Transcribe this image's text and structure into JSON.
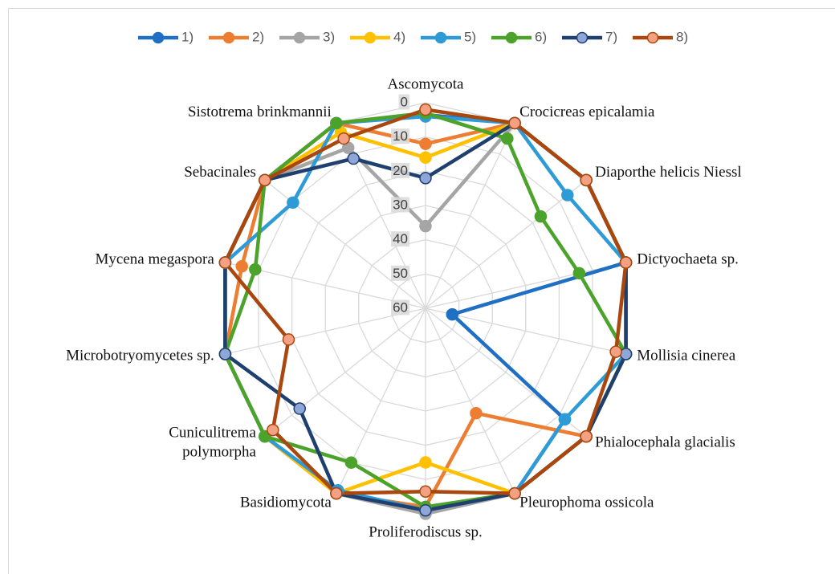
{
  "chart_data": {
    "type": "radar",
    "categories": [
      "Ascomycota",
      "Crocicreas epicalamia",
      "Diaporthe helicis Niessl",
      "Dictyochaeta sp.",
      "Mollisia cinerea",
      "Phialocephala glacialis",
      "Pleurophoma ossicola",
      "Proliferodiscus sp.",
      "Basidiomycota",
      "Cuniculitrema polymorpha",
      "Microbotryomycetes sp.",
      "Mycena megaspora",
      "Sebacinales",
      "Sistotrema brinkmannii"
    ],
    "series": [
      {
        "name": "1)",
        "color": "#1f6fc5",
        "marker_color": "#1f6fc5",
        "values": [
          3.5,
          0,
          0,
          0,
          52,
          8,
          0,
          1,
          0,
          0,
          0,
          0,
          0,
          0
        ]
      },
      {
        "name": "2)",
        "color": "#ed7d31",
        "marker_color": "#ed7d31",
        "values": [
          12,
          0,
          0,
          0,
          0,
          0,
          26,
          2,
          0,
          0,
          0,
          5,
          0,
          0
        ]
      },
      {
        "name": "3)",
        "color": "#a5a5a5",
        "marker_color": "#a5a5a5",
        "values": [
          36,
          0,
          0,
          0,
          0,
          0,
          0,
          0,
          0,
          0,
          0,
          0,
          0,
          8
        ]
      },
      {
        "name": "4)",
        "color": "#ffc000",
        "marker_color": "#ffc000",
        "values": [
          16,
          0,
          0,
          0,
          0,
          0,
          0,
          15,
          0,
          0,
          0,
          0,
          0,
          3
        ]
      },
      {
        "name": "5)",
        "color": "#2e9bd6",
        "marker_color": "#2e9bd6",
        "values": [
          4,
          0,
          7,
          0,
          0,
          8,
          0,
          1,
          1,
          0,
          0,
          0,
          10.5,
          0
        ]
      },
      {
        "name": "6)",
        "color": "#4ca32c",
        "marker_color": "#4ca32c",
        "values": [
          3,
          5,
          17,
          14,
          0,
          0,
          0,
          2,
          10,
          0,
          0,
          9,
          0,
          0
        ]
      },
      {
        "name": "7)",
        "color": "#1f3f6e",
        "marker_color": "#8fa6d8",
        "values": [
          22,
          0,
          0,
          0,
          0,
          0,
          0,
          1,
          0,
          13,
          0,
          0,
          0,
          11.5
        ]
      },
      {
        "name": "8)",
        "color": "#a9470e",
        "marker_color": "#f4a183",
        "values": [
          2,
          0,
          0,
          0,
          3,
          0,
          0,
          6.5,
          0,
          3,
          19,
          0,
          0,
          5
        ]
      }
    ],
    "ylim": [
      0,
      60
    ],
    "yticks": [
      0,
      10,
      20,
      30,
      40,
      50,
      60
    ],
    "reversed_axis": true,
    "grid": true,
    "legend": "top"
  }
}
